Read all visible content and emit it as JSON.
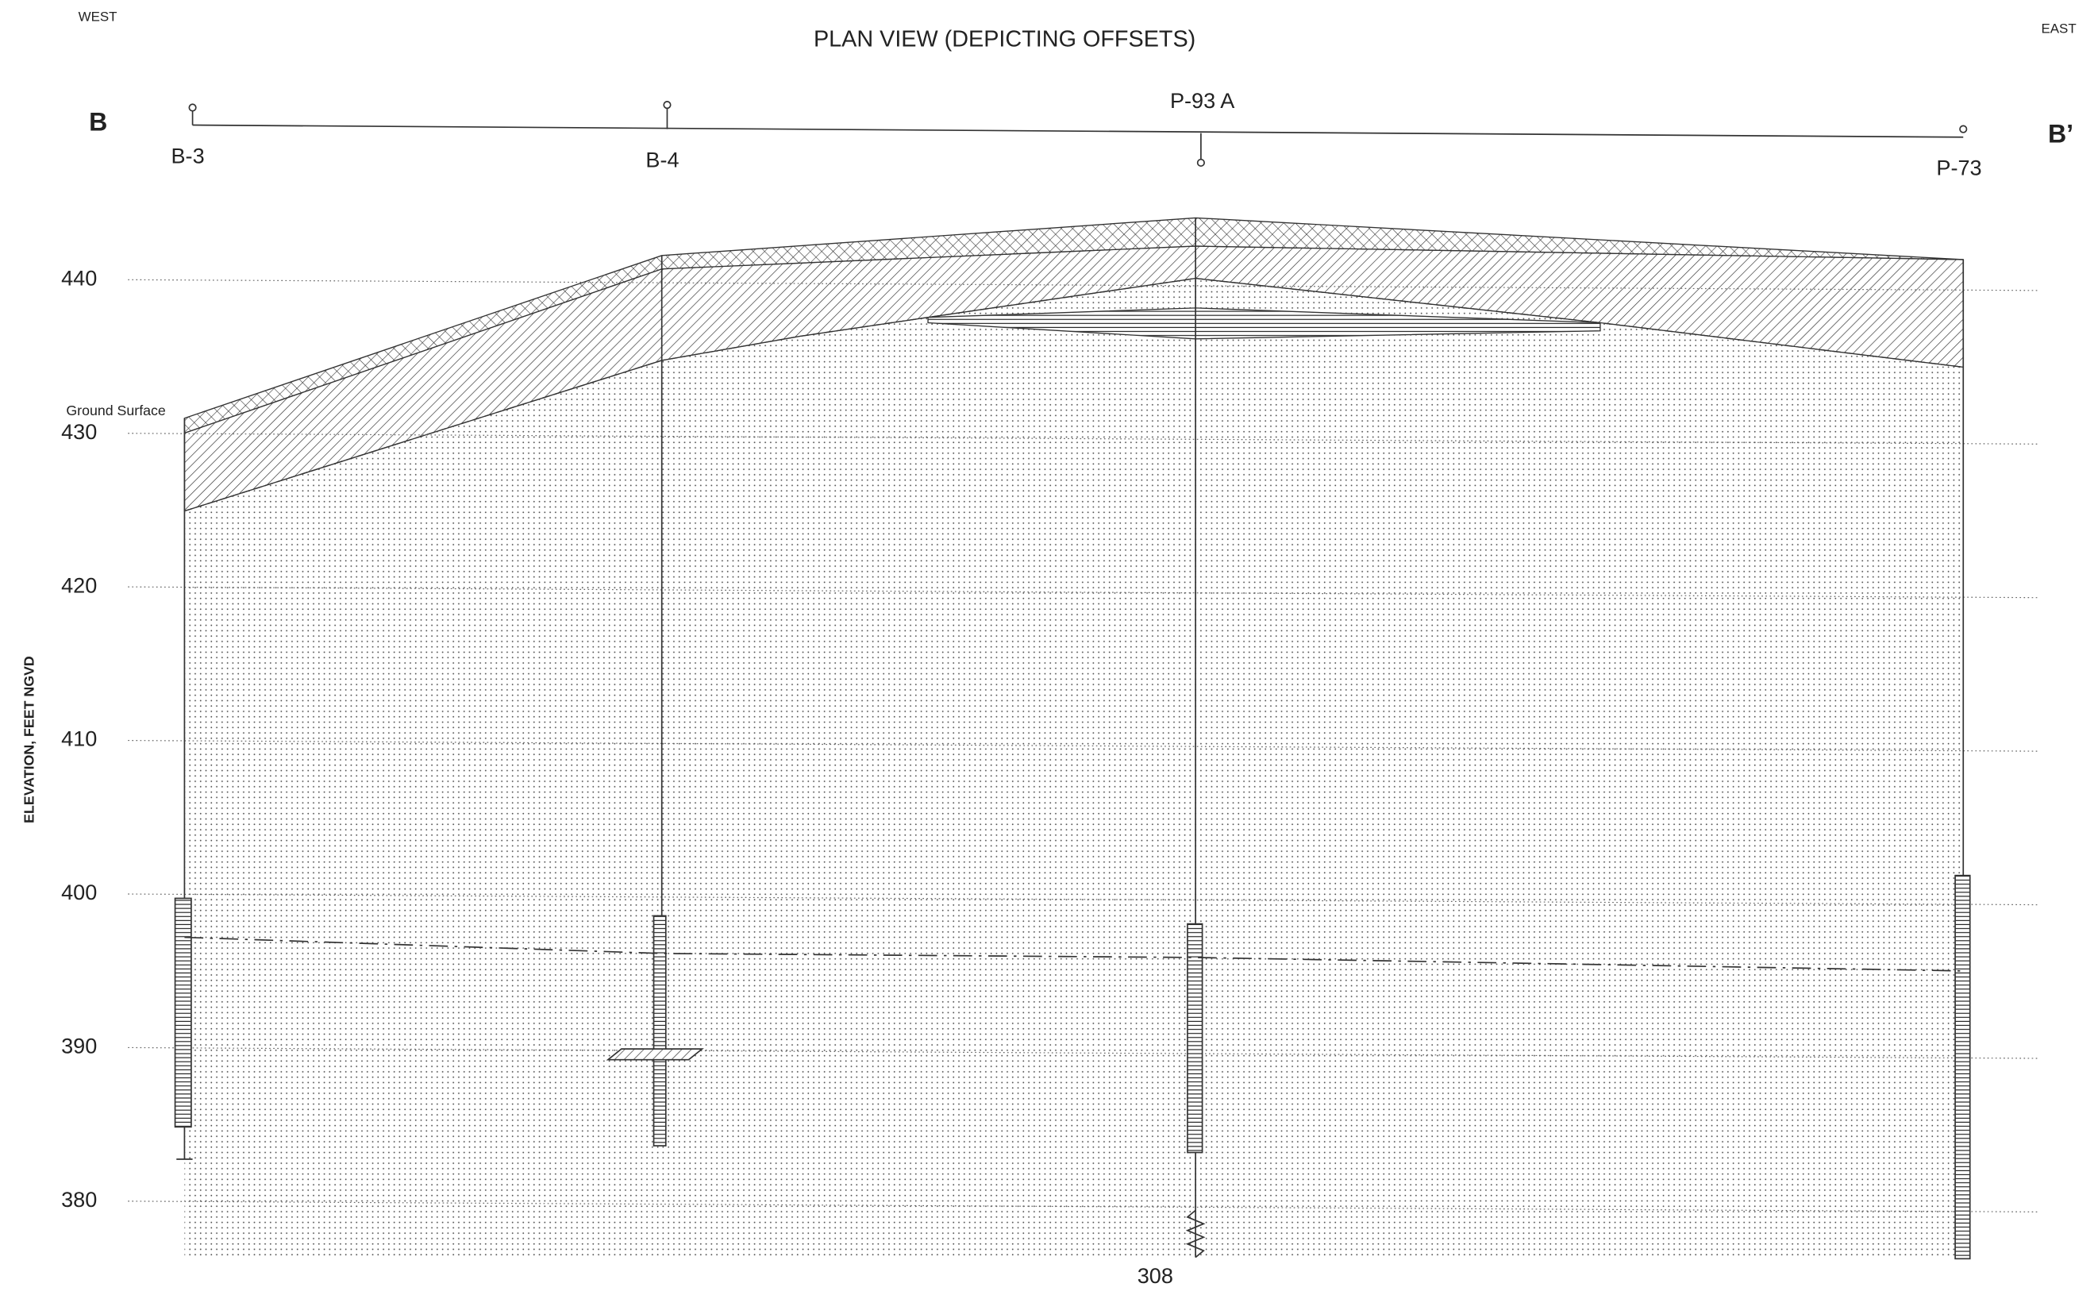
{
  "header": {
    "west": "WEST",
    "east": "EAST",
    "title": "PLAN VIEW (DEPICTING OFFSETS)",
    "section_start": "B",
    "section_end": "B’"
  },
  "borings": [
    {
      "label": "B-3"
    },
    {
      "label": "B-4"
    },
    {
      "label": "P-93 A"
    },
    {
      "label": "P-73"
    }
  ],
  "ground_surface_label": "Ground Surface",
  "axis": {
    "label": "ELEVATION, FEET NGVD",
    "ticks": [
      440,
      430,
      420,
      410,
      400,
      390,
      380
    ]
  },
  "bottom_label": "308"
}
